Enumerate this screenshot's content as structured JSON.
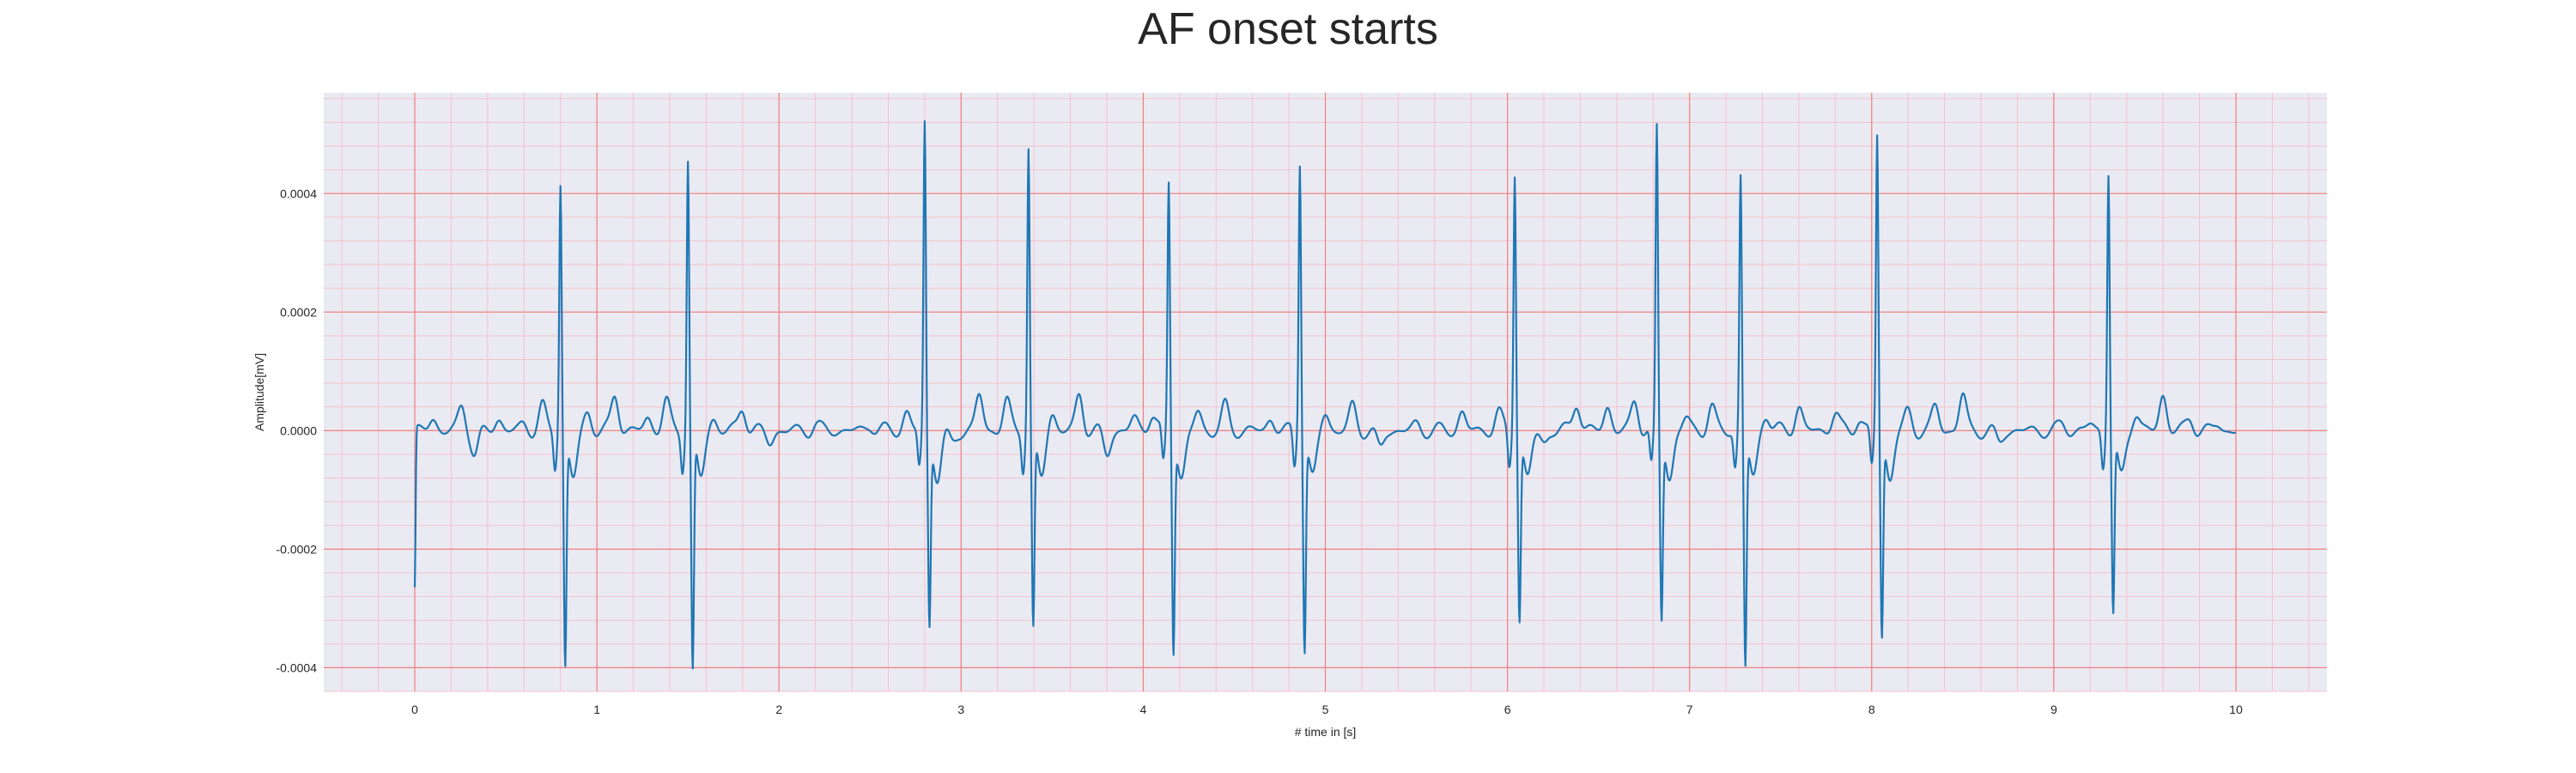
{
  "chart_data": {
    "type": "line",
    "title": "AF onset starts",
    "xlabel": "# time in [s]",
    "ylabel": "Amplitude[mV]",
    "xlim": [
      -0.5,
      10.5
    ],
    "ylim": [
      -0.00044,
      0.00057
    ],
    "x_ticks": [
      0,
      1,
      2,
      3,
      4,
      5,
      6,
      7,
      8,
      9,
      10
    ],
    "x_tick_labels": [
      "0",
      "1",
      "2",
      "3",
      "4",
      "5",
      "6",
      "7",
      "8",
      "9",
      "10"
    ],
    "y_ticks": [
      -0.0004,
      -0.0002,
      0.0,
      0.0002,
      0.0004
    ],
    "y_tick_labels": [
      "-0.0004",
      "-0.0002",
      "0.0000",
      "0.0002",
      "0.0004"
    ],
    "grid": true,
    "minor_grid": true,
    "colors": {
      "line": "#1f77b4",
      "plot_background": "#eaeaf2",
      "major_grid": "#f08080",
      "minor_grid": "#f7b8c4"
    },
    "series": [
      {
        "name": "",
        "beats": [
          {
            "t": 0.8,
            "r": 0.00042,
            "s": -0.00039
          },
          {
            "t": 1.5,
            "r": 0.00046,
            "s": -0.0004
          },
          {
            "t": 2.8,
            "r": 0.00052,
            "s": -0.00032
          },
          {
            "t": 3.37,
            "r": 0.00048,
            "s": -0.00033
          },
          {
            "t": 4.14,
            "r": 0.00042,
            "s": -0.00036
          },
          {
            "t": 4.86,
            "r": 0.00046,
            "s": -0.00036
          },
          {
            "t": 6.04,
            "r": 0.00044,
            "s": -0.00031
          },
          {
            "t": 6.82,
            "r": 0.00051,
            "s": -0.00031
          },
          {
            "t": 7.28,
            "r": 0.00043,
            "s": -0.00039
          },
          {
            "t": 8.03,
            "r": 0.0005,
            "s": -0.00034
          },
          {
            "t": 9.3,
            "r": 0.00044,
            "s": -0.0003
          }
        ],
        "waves": [
          {
            "t": 0.1,
            "a": 2e-05
          },
          {
            "t": 0.26,
            "a": 4e-05
          },
          {
            "t": 0.33,
            "a": -4e-05
          },
          {
            "t": 0.46,
            "a": 2e-05
          },
          {
            "t": 0.6,
            "a": 1e-05
          },
          {
            "t": 0.7,
            "a": 4e-05
          },
          {
            "t": 0.95,
            "a": 3e-05
          },
          {
            "t": 1.1,
            "a": 6e-05
          },
          {
            "t": 1.28,
            "a": 2e-05
          },
          {
            "t": 1.38,
            "a": 5e-05
          },
          {
            "t": 1.64,
            "a": 2e-05
          },
          {
            "t": 1.8,
            "a": 4e-05
          },
          {
            "t": 1.95,
            "a": -2e-05
          },
          {
            "t": 2.2,
            "a": 1e-05
          },
          {
            "t": 2.5,
            "a": 1e-05
          },
          {
            "t": 2.7,
            "a": 3e-05
          },
          {
            "t": 2.95,
            "a": -2e-05
          },
          {
            "t": 3.1,
            "a": 6e-05
          },
          {
            "t": 3.25,
            "a": 5e-05
          },
          {
            "t": 3.5,
            "a": 3e-05
          },
          {
            "t": 3.65,
            "a": 6e-05
          },
          {
            "t": 3.8,
            "a": -4e-05
          },
          {
            "t": 3.95,
            "a": 2e-05
          },
          {
            "t": 4.05,
            "a": 3e-05
          },
          {
            "t": 4.3,
            "a": 3e-05
          },
          {
            "t": 4.45,
            "a": 4e-05
          },
          {
            "t": 4.7,
            "a": 2e-05
          },
          {
            "t": 5.0,
            "a": 3e-05
          },
          {
            "t": 5.15,
            "a": 4e-05
          },
          {
            "t": 5.3,
            "a": -3e-05
          },
          {
            "t": 5.5,
            "a": 1e-05
          },
          {
            "t": 5.75,
            "a": 3e-05
          },
          {
            "t": 5.95,
            "a": 3e-05
          },
          {
            "t": 6.2,
            "a": -2e-05
          },
          {
            "t": 6.38,
            "a": 5e-05
          },
          {
            "t": 6.55,
            "a": 4e-05
          },
          {
            "t": 6.7,
            "a": 5e-05
          },
          {
            "t": 6.98,
            "a": 2e-05
          },
          {
            "t": 7.12,
            "a": 4e-05
          },
          {
            "t": 7.42,
            "a": 3e-05
          },
          {
            "t": 7.6,
            "a": 4e-05
          },
          {
            "t": 7.8,
            "a": 3e-05
          },
          {
            "t": 7.93,
            "a": 2e-05
          },
          {
            "t": 8.2,
            "a": 3e-05
          },
          {
            "t": 8.35,
            "a": 4e-05
          },
          {
            "t": 8.5,
            "a": 6e-05
          },
          {
            "t": 8.7,
            "a": -2e-05
          },
          {
            "t": 9.05,
            "a": 1e-05
          },
          {
            "t": 9.2,
            "a": 1e-05
          },
          {
            "t": 9.45,
            "a": 3e-05
          },
          {
            "t": 9.6,
            "a": 6e-05
          },
          {
            "t": 9.75,
            "a": 2e-05
          },
          {
            "t": 9.9,
            "a": 1e-05
          }
        ],
        "start_value": -0.00027,
        "end_value": -2e-05,
        "x_range": [
          0,
          10
        ]
      }
    ]
  }
}
